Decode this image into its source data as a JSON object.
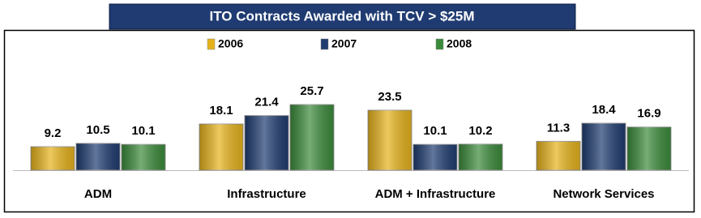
{
  "chart_data": {
    "type": "bar",
    "title": "ITO Contracts Awarded with TCV > $25M",
    "categories": [
      "ADM",
      "Infrastructure",
      "ADM + Infrastructure",
      "Network Services"
    ],
    "series": [
      {
        "name": "2006",
        "color": "#e5b21c",
        "values": [
          9.2,
          18.1,
          23.5,
          11.3
        ]
      },
      {
        "name": "2007",
        "color": "#1f3c70",
        "values": [
          10.5,
          21.4,
          10.1,
          18.4
        ]
      },
      {
        "name": "2008",
        "color": "#3b8a3b",
        "values": [
          10.1,
          25.7,
          10.2,
          16.9
        ]
      }
    ],
    "legend": "top"
  }
}
